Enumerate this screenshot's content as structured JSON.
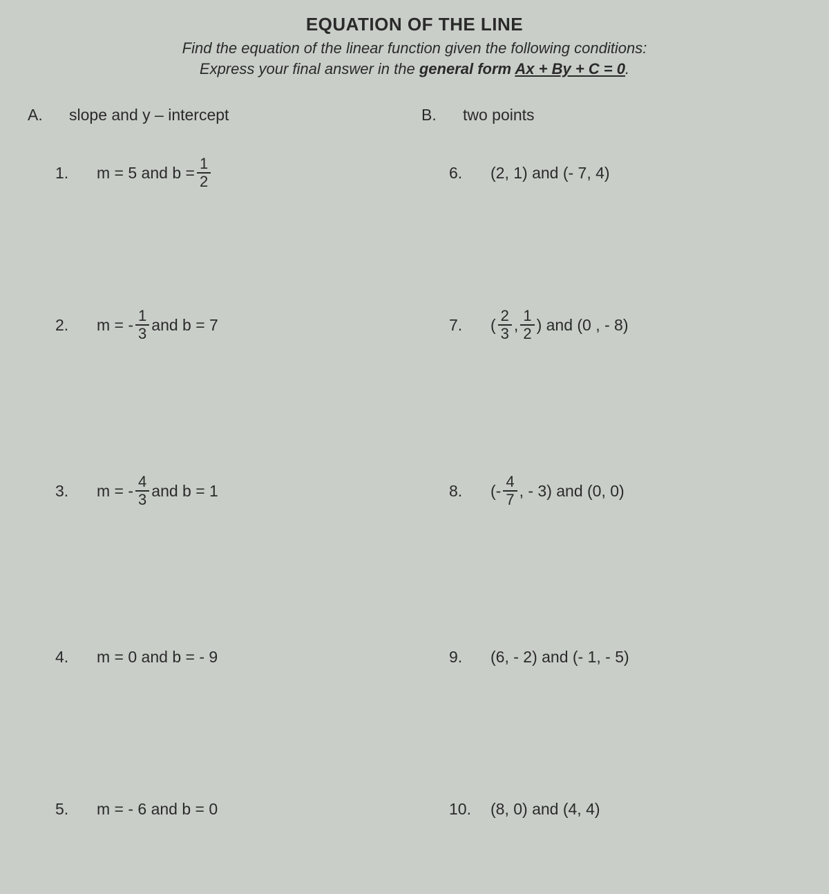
{
  "header": {
    "title": "EQUATION OF THE LINE",
    "subtitle1": "Find the equation of the linear function given the following conditions:",
    "subtitle2_a": "Express your final answer in the ",
    "subtitle2_b": "general form ",
    "subtitle2_c": "Ax + By + C = 0",
    "subtitle2_d": "."
  },
  "colA": {
    "letter": "A.",
    "label": "slope and y – intercept",
    "items": {
      "p1": {
        "num": "1.",
        "pre": "m = 5 and b = ",
        "frac_n": "1",
        "frac_d": "2"
      },
      "p2": {
        "num": "2.",
        "pre": "m = - ",
        "frac_n": "1",
        "frac_d": "3",
        "post": " and b = 7"
      },
      "p3": {
        "num": "3.",
        "pre": "m = - ",
        "frac_n": "4",
        "frac_d": "3",
        "post": " and b = 1"
      },
      "p4": {
        "num": "4.",
        "text": "m = 0 and b = - 9"
      },
      "p5": {
        "num": "5.",
        "text": "m = - 6 and b = 0"
      }
    }
  },
  "colB": {
    "letter": "B.",
    "label": "two points",
    "items": {
      "p6": {
        "num": "6.",
        "text": "(2, 1) and (- 7, 4)"
      },
      "p7": {
        "num": "7.",
        "pre": "(",
        "f1n": "2",
        "f1d": "3",
        "mid": ", ",
        "f2n": "1",
        "f2d": "2",
        "post": ") and (0 , - 8)"
      },
      "p8": {
        "num": "8.",
        "pre": "(-",
        "frac_n": "4",
        "frac_d": "7",
        "post": ", - 3) and (0, 0)"
      },
      "p9": {
        "num": "9.",
        "text": "(6, - 2) and (- 1, - 5)"
      },
      "p10": {
        "num": "10.",
        "text": "(8, 0) and (4, 4)"
      }
    }
  },
  "style": {
    "background": "#c9cec9",
    "text_color": "#2a2a2a",
    "title_fontsize": 26,
    "body_fontsize": 23,
    "frac_fontsize": 22
  }
}
